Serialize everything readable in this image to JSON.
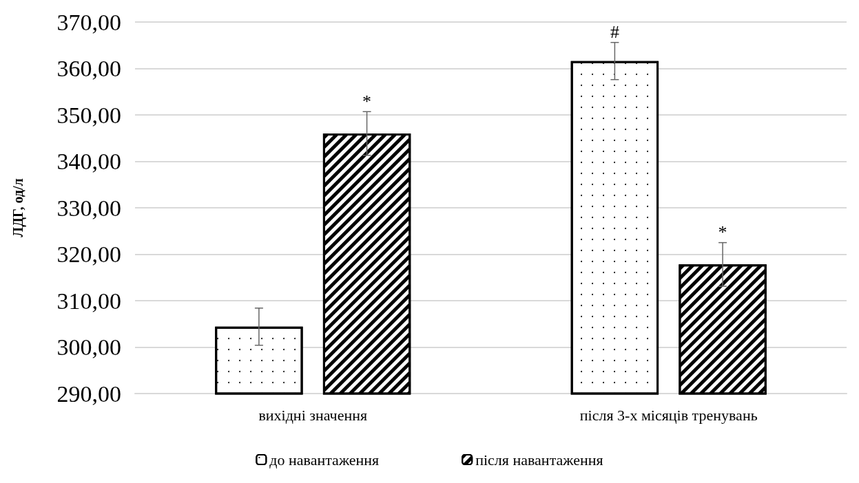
{
  "chart_data": {
    "type": "bar",
    "ylabel": "ЛДГ, од/л",
    "categories": [
      "вихідні значення",
      "після 3-х місяців тренувань"
    ],
    "series": [
      {
        "name": "до навантаження",
        "color": "#ffffff",
        "values": [
          304.4,
          361.6
        ],
        "errors": [
          4.0,
          4.0
        ],
        "value_labels": [
          null,
          "#"
        ]
      },
      {
        "name": "після навантаження",
        "color": "#ffffff",
        "values": [
          346.0,
          317.8
        ],
        "errors": [
          4.7,
          4.7
        ],
        "value_labels": [
          "*",
          "*"
        ]
      }
    ],
    "ylim": [
      290,
      370
    ],
    "yticks": [
      {
        "value": 290,
        "label": "290,00"
      },
      {
        "value": 300,
        "label": "300,00"
      },
      {
        "value": 310,
        "label": "310,00"
      },
      {
        "value": 320,
        "label": "320,00"
      },
      {
        "value": 330,
        "label": "330,00"
      },
      {
        "value": 340,
        "label": "340,00"
      },
      {
        "value": 350,
        "label": "350,00"
      },
      {
        "value": 360,
        "label": "360,00"
      },
      {
        "value": 370,
        "label": "370,00"
      }
    ],
    "grid": "y",
    "legend": "bottom"
  }
}
